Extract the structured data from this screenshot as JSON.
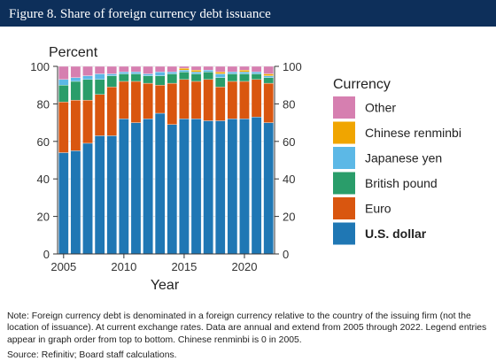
{
  "figure": {
    "title": "Figure 8. Share of foreign currency debt issuance",
    "note": "Note: Foreign currency debt is denominated in a foreign currency relative to the country of the issuing firm (not the location of issuance). At current exchange rates. Data are annual and extend from 2005 through 2022. Legend entries appear in graph order from top to bottom. Chinese renminbi is 0 in 2005.",
    "source": "Source: Refinitiv; Board staff calculations."
  },
  "chart_data": {
    "type": "bar",
    "stacked": true,
    "ylabel": "Percent",
    "xlabel": "Year",
    "ylim": [
      0,
      100
    ],
    "yticks": [
      0,
      20,
      40,
      60,
      80,
      100
    ],
    "xticks": [
      2005,
      2010,
      2015,
      2020
    ],
    "legend_title": "Currency",
    "legend_placement": "right",
    "x": [
      2005,
      2006,
      2007,
      2008,
      2009,
      2010,
      2011,
      2012,
      2013,
      2014,
      2015,
      2016,
      2017,
      2018,
      2019,
      2020,
      2021,
      2022
    ],
    "series": [
      {
        "name": "U.S. dollar",
        "color": "#1f77b4",
        "values": [
          54,
          55,
          59,
          63,
          63,
          72,
          70,
          72,
          75,
          69,
          72,
          72,
          71,
          71,
          72,
          72,
          73,
          70
        ]
      },
      {
        "name": "Euro",
        "color": "#d9560f",
        "values": [
          27,
          27,
          23,
          22,
          26,
          20,
          22,
          19,
          15,
          22,
          21,
          20,
          22,
          18,
          20,
          20,
          20,
          21
        ]
      },
      {
        "name": "British pound",
        "color": "#2a9d6a",
        "values": [
          9,
          10,
          11,
          8,
          6,
          4,
          4,
          4,
          5,
          5,
          4,
          4,
          4,
          5,
          4,
          4,
          3,
          3
        ]
      },
      {
        "name": "Japanese yen",
        "color": "#5cb8e6",
        "values": [
          3,
          2,
          2,
          3,
          1,
          1,
          1,
          1,
          2,
          1,
          1,
          1,
          1,
          2,
          1,
          1,
          1,
          1
        ]
      },
      {
        "name": "Chinese renminbi",
        "color": "#f0a500",
        "values": [
          0,
          0,
          0,
          0,
          0,
          0,
          0,
          0,
          0,
          0,
          1,
          1,
          0,
          1,
          0,
          1,
          0,
          1
        ]
      },
      {
        "name": "Other",
        "color": "#d67fb0",
        "values": [
          7,
          6,
          5,
          4,
          4,
          3,
          3,
          4,
          3,
          3,
          1,
          2,
          2,
          3,
          3,
          2,
          3,
          4
        ]
      }
    ]
  }
}
